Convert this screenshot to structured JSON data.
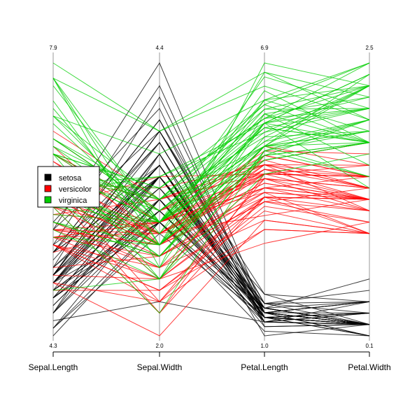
{
  "chart_data": {
    "type": "parallel_coordinates",
    "title": "",
    "dimensions": [
      {
        "name": "Sepal.Length",
        "min": 4.3,
        "max": 7.9,
        "min_label": "4.3",
        "max_label": "7.9"
      },
      {
        "name": "Sepal.Width",
        "min": 2.0,
        "max": 4.4,
        "min_label": "2.0",
        "max_label": "4.4"
      },
      {
        "name": "Petal.Length",
        "min": 1.0,
        "max": 6.9,
        "min_label": "1.0",
        "max_label": "6.9"
      },
      {
        "name": "Petal.Width",
        "min": 0.1,
        "max": 2.5,
        "min_label": "0.1",
        "max_label": "2.5"
      }
    ],
    "legend": {
      "position": "left",
      "entries": [
        {
          "name": "setosa",
          "color": "#000000"
        },
        {
          "name": "versicolor",
          "color": "#ff0000"
        },
        {
          "name": "virginica",
          "color": "#00cd00"
        }
      ]
    },
    "series": [
      {
        "name": "setosa",
        "color": "#000000",
        "line_opacity": 0.75,
        "values": [
          [
            5.1,
            3.5,
            1.4,
            0.2
          ],
          [
            4.9,
            3.0,
            1.4,
            0.2
          ],
          [
            4.7,
            3.2,
            1.3,
            0.2
          ],
          [
            4.6,
            3.1,
            1.5,
            0.2
          ],
          [
            5.0,
            3.6,
            1.4,
            0.2
          ],
          [
            5.4,
            3.9,
            1.7,
            0.4
          ],
          [
            4.6,
            3.4,
            1.4,
            0.3
          ],
          [
            5.0,
            3.4,
            1.5,
            0.2
          ],
          [
            4.4,
            2.9,
            1.4,
            0.2
          ],
          [
            4.9,
            3.1,
            1.5,
            0.1
          ],
          [
            5.4,
            3.7,
            1.5,
            0.2
          ],
          [
            4.8,
            3.4,
            1.6,
            0.2
          ],
          [
            4.8,
            3.0,
            1.4,
            0.1
          ],
          [
            4.3,
            3.0,
            1.1,
            0.1
          ],
          [
            5.8,
            4.0,
            1.2,
            0.2
          ],
          [
            5.7,
            4.4,
            1.5,
            0.4
          ],
          [
            5.4,
            3.9,
            1.3,
            0.4
          ],
          [
            5.1,
            3.5,
            1.4,
            0.3
          ],
          [
            5.7,
            3.8,
            1.7,
            0.3
          ],
          [
            5.1,
            3.8,
            1.5,
            0.3
          ],
          [
            5.4,
            3.4,
            1.7,
            0.2
          ],
          [
            5.1,
            3.7,
            1.5,
            0.4
          ],
          [
            4.6,
            3.6,
            1.0,
            0.2
          ],
          [
            5.1,
            3.3,
            1.7,
            0.5
          ],
          [
            4.8,
            3.4,
            1.9,
            0.2
          ],
          [
            5.0,
            3.0,
            1.6,
            0.2
          ],
          [
            5.0,
            3.4,
            1.6,
            0.4
          ],
          [
            5.2,
            3.5,
            1.5,
            0.2
          ],
          [
            5.2,
            3.4,
            1.4,
            0.2
          ],
          [
            4.7,
            3.2,
            1.6,
            0.2
          ],
          [
            4.8,
            3.1,
            1.6,
            0.2
          ],
          [
            5.4,
            3.4,
            1.5,
            0.4
          ],
          [
            5.2,
            4.1,
            1.5,
            0.1
          ],
          [
            5.5,
            4.2,
            1.4,
            0.2
          ],
          [
            4.9,
            3.1,
            1.5,
            0.2
          ],
          [
            5.0,
            3.2,
            1.2,
            0.2
          ],
          [
            5.5,
            3.5,
            1.3,
            0.2
          ],
          [
            4.9,
            3.6,
            1.4,
            0.1
          ],
          [
            4.4,
            3.0,
            1.3,
            0.2
          ],
          [
            5.1,
            3.4,
            1.5,
            0.2
          ],
          [
            5.0,
            3.5,
            1.3,
            0.3
          ],
          [
            4.5,
            2.3,
            1.3,
            0.3
          ],
          [
            4.4,
            3.2,
            1.3,
            0.2
          ],
          [
            5.0,
            3.5,
            1.6,
            0.6
          ],
          [
            5.1,
            3.8,
            1.9,
            0.4
          ],
          [
            4.8,
            3.0,
            1.4,
            0.3
          ],
          [
            5.1,
            3.8,
            1.6,
            0.2
          ],
          [
            4.6,
            3.2,
            1.4,
            0.2
          ],
          [
            5.3,
            3.7,
            1.5,
            0.2
          ],
          [
            5.0,
            3.3,
            1.4,
            0.2
          ]
        ]
      },
      {
        "name": "versicolor",
        "color": "#ff0000",
        "line_opacity": 0.75,
        "values": [
          [
            7.0,
            3.2,
            4.7,
            1.4
          ],
          [
            6.4,
            3.2,
            4.5,
            1.5
          ],
          [
            6.9,
            3.1,
            4.9,
            1.5
          ],
          [
            5.5,
            2.3,
            4.0,
            1.3
          ],
          [
            6.5,
            2.8,
            4.6,
            1.5
          ],
          [
            5.7,
            2.8,
            4.5,
            1.3
          ],
          [
            6.3,
            3.3,
            4.7,
            1.6
          ],
          [
            4.9,
            2.4,
            3.3,
            1.0
          ],
          [
            6.6,
            2.9,
            4.6,
            1.3
          ],
          [
            5.2,
            2.7,
            3.9,
            1.4
          ],
          [
            5.0,
            2.0,
            3.5,
            1.0
          ],
          [
            5.9,
            3.0,
            4.2,
            1.5
          ],
          [
            6.0,
            2.2,
            4.0,
            1.0
          ],
          [
            6.1,
            2.9,
            4.7,
            1.4
          ],
          [
            5.6,
            2.9,
            3.6,
            1.3
          ],
          [
            6.7,
            3.1,
            4.4,
            1.4
          ],
          [
            5.6,
            3.0,
            4.5,
            1.5
          ],
          [
            5.8,
            2.7,
            4.1,
            1.0
          ],
          [
            6.2,
            2.2,
            4.5,
            1.5
          ],
          [
            5.6,
            2.5,
            3.9,
            1.1
          ],
          [
            5.9,
            3.2,
            4.8,
            1.8
          ],
          [
            6.1,
            2.8,
            4.0,
            1.3
          ],
          [
            6.3,
            2.5,
            4.9,
            1.5
          ],
          [
            6.1,
            2.8,
            4.7,
            1.2
          ],
          [
            6.4,
            2.9,
            4.3,
            1.3
          ],
          [
            6.6,
            3.0,
            4.4,
            1.4
          ],
          [
            6.8,
            2.8,
            4.8,
            1.4
          ],
          [
            6.7,
            3.0,
            5.0,
            1.7
          ],
          [
            6.0,
            2.9,
            4.5,
            1.5
          ],
          [
            5.7,
            2.6,
            3.5,
            1.0
          ],
          [
            5.5,
            2.4,
            3.8,
            1.1
          ],
          [
            5.5,
            2.4,
            3.7,
            1.0
          ],
          [
            5.8,
            2.7,
            3.9,
            1.2
          ],
          [
            6.0,
            2.7,
            5.1,
            1.6
          ],
          [
            5.4,
            3.0,
            4.5,
            1.5
          ],
          [
            6.0,
            3.4,
            4.5,
            1.6
          ],
          [
            6.7,
            3.1,
            4.7,
            1.5
          ],
          [
            6.3,
            2.3,
            4.4,
            1.3
          ],
          [
            5.6,
            3.0,
            4.1,
            1.3
          ],
          [
            5.5,
            2.5,
            4.0,
            1.3
          ],
          [
            5.5,
            2.6,
            4.4,
            1.2
          ],
          [
            6.1,
            3.0,
            4.6,
            1.4
          ],
          [
            5.8,
            2.6,
            4.0,
            1.2
          ],
          [
            5.0,
            2.3,
            3.3,
            1.0
          ],
          [
            5.6,
            2.7,
            4.2,
            1.3
          ],
          [
            5.7,
            3.0,
            4.2,
            1.2
          ],
          [
            5.7,
            2.9,
            4.2,
            1.3
          ],
          [
            6.2,
            2.9,
            4.3,
            1.3
          ],
          [
            5.1,
            2.5,
            3.0,
            1.1
          ],
          [
            5.7,
            2.8,
            4.1,
            1.3
          ]
        ]
      },
      {
        "name": "virginica",
        "color": "#00cd00",
        "line_opacity": 0.75,
        "values": [
          [
            6.3,
            3.3,
            6.0,
            2.5
          ],
          [
            5.8,
            2.7,
            5.1,
            1.9
          ],
          [
            7.1,
            3.0,
            5.9,
            2.1
          ],
          [
            6.3,
            2.9,
            5.6,
            1.8
          ],
          [
            6.5,
            3.0,
            5.8,
            2.2
          ],
          [
            7.6,
            3.0,
            6.6,
            2.1
          ],
          [
            4.9,
            2.5,
            4.5,
            1.7
          ],
          [
            7.3,
            2.9,
            6.3,
            1.8
          ],
          [
            6.7,
            2.5,
            5.8,
            1.8
          ],
          [
            7.2,
            3.6,
            6.1,
            2.5
          ],
          [
            6.5,
            3.2,
            5.1,
            2.0
          ],
          [
            6.4,
            2.7,
            5.3,
            1.9
          ],
          [
            6.8,
            3.0,
            5.5,
            2.1
          ],
          [
            5.7,
            2.5,
            5.0,
            2.0
          ],
          [
            5.8,
            2.8,
            5.1,
            2.4
          ],
          [
            6.4,
            3.2,
            5.3,
            2.3
          ],
          [
            6.5,
            3.0,
            5.5,
            1.8
          ],
          [
            7.7,
            3.8,
            6.7,
            2.2
          ],
          [
            7.7,
            2.6,
            6.9,
            2.3
          ],
          [
            6.0,
            2.2,
            5.0,
            1.5
          ],
          [
            6.9,
            3.2,
            5.7,
            2.3
          ],
          [
            5.6,
            2.8,
            4.9,
            2.0
          ],
          [
            7.7,
            2.8,
            6.7,
            2.0
          ],
          [
            6.3,
            2.7,
            4.9,
            1.8
          ],
          [
            6.7,
            3.3,
            5.7,
            2.1
          ],
          [
            7.2,
            3.2,
            6.0,
            1.8
          ],
          [
            6.2,
            2.8,
            4.8,
            1.8
          ],
          [
            6.1,
            3.0,
            4.9,
            1.8
          ],
          [
            6.4,
            2.8,
            5.6,
            2.1
          ],
          [
            7.2,
            3.0,
            5.8,
            1.6
          ],
          [
            7.4,
            2.8,
            6.1,
            1.9
          ],
          [
            7.9,
            3.8,
            6.4,
            2.0
          ],
          [
            6.4,
            2.8,
            5.6,
            2.2
          ],
          [
            6.3,
            2.8,
            5.1,
            1.5
          ],
          [
            6.1,
            2.6,
            5.6,
            1.4
          ],
          [
            7.7,
            3.0,
            6.1,
            2.3
          ],
          [
            6.3,
            3.4,
            5.6,
            2.4
          ],
          [
            6.4,
            3.1,
            5.5,
            1.8
          ],
          [
            6.0,
            3.0,
            4.8,
            1.8
          ],
          [
            6.9,
            3.1,
            5.4,
            2.1
          ],
          [
            6.7,
            3.1,
            5.6,
            2.4
          ],
          [
            6.9,
            3.1,
            5.1,
            2.3
          ],
          [
            5.8,
            2.7,
            5.1,
            1.9
          ],
          [
            6.8,
            3.2,
            5.9,
            2.3
          ],
          [
            6.7,
            3.3,
            5.7,
            2.5
          ],
          [
            6.7,
            3.0,
            5.2,
            2.3
          ],
          [
            6.3,
            2.5,
            5.0,
            1.9
          ],
          [
            6.5,
            3.0,
            5.2,
            2.0
          ],
          [
            6.2,
            3.4,
            5.4,
            2.3
          ],
          [
            5.9,
            3.0,
            5.1,
            1.8
          ]
        ]
      }
    ]
  }
}
